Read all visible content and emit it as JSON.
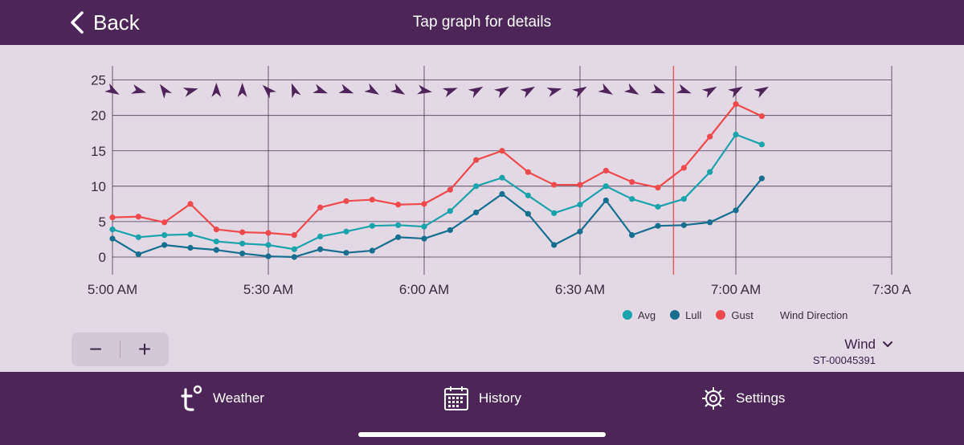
{
  "header": {
    "back_label": "Back",
    "title": "Tap graph for details"
  },
  "chart_data": {
    "type": "line",
    "x_tick_labels": [
      "5:00 AM",
      "5:30 AM",
      "6:00 AM",
      "6:30 AM",
      "7:00 AM",
      "7:30 A"
    ],
    "x_range_minutes": [
      0,
      150
    ],
    "y_ticks": [
      "25",
      "20",
      "15",
      "10",
      "5",
      "0"
    ],
    "ylim": [
      -2.5,
      27
    ],
    "current_time_marker_minute": 108,
    "x_minutes": [
      0,
      5,
      10,
      15,
      20,
      25,
      30,
      35,
      40,
      45,
      50,
      55,
      60,
      65,
      70,
      75,
      80,
      85,
      90,
      95,
      100,
      105,
      110,
      115,
      120,
      125
    ],
    "series": [
      {
        "name": "Avg",
        "color": "#1aa3aa",
        "values": [
          3.9,
          2.8,
          3.1,
          3.2,
          2.2,
          1.9,
          1.7,
          1.1,
          2.9,
          3.6,
          4.4,
          4.5,
          4.3,
          6.5,
          10.0,
          11.2,
          8.7,
          6.2,
          7.4,
          10.0,
          8.2,
          7.1,
          8.2,
          12.0,
          17.3,
          15.9
        ]
      },
      {
        "name": "Lull",
        "color": "#176e8f",
        "values": [
          2.6,
          0.4,
          1.7,
          1.3,
          1.0,
          0.5,
          0.1,
          0.0,
          1.1,
          0.6,
          0.9,
          2.8,
          2.6,
          3.8,
          6.3,
          8.9,
          6.1,
          1.7,
          3.6,
          8.0,
          3.1,
          4.4,
          4.5,
          4.9,
          6.6,
          11.1
        ]
      },
      {
        "name": "Gust",
        "color": "#ee4a4e",
        "values": [
          5.6,
          5.7,
          4.9,
          7.5,
          3.9,
          3.5,
          3.4,
          3.1,
          7.0,
          7.9,
          8.1,
          7.4,
          7.5,
          9.5,
          13.7,
          15.0,
          12.0,
          10.2,
          10.2,
          12.2,
          10.6,
          9.8,
          12.6,
          17.0,
          21.6,
          19.9
        ]
      }
    ],
    "wind_direction_label": "Wind Direction",
    "wind_direction_y_value": 23.5,
    "wind_direction_minutes": [
      0,
      5,
      10,
      15,
      20,
      25,
      30,
      35,
      40,
      45,
      50,
      55,
      60,
      65,
      70,
      75,
      80,
      85,
      90,
      95,
      100,
      105,
      110,
      115,
      120,
      125
    ],
    "wind_direction_degrees": [
      120,
      105,
      325,
      75,
      0,
      0,
      315,
      340,
      110,
      110,
      120,
      120,
      100,
      70,
      60,
      60,
      60,
      75,
      60,
      120,
      120,
      110,
      110,
      60,
      60,
      60
    ],
    "colors": {
      "background": "#e3d9e5",
      "grid": "#4a3454",
      "axis_text": "#3a2a40",
      "marker": "#e85a5a",
      "arrow": "#4e2559"
    }
  },
  "legend": {
    "items": [
      {
        "label": "Avg",
        "color": "#1aa3aa"
      },
      {
        "label": "Lull",
        "color": "#176e8f"
      },
      {
        "label": "Gust",
        "color": "#ee4a4e"
      }
    ],
    "wind_direction_label": "Wind Direction"
  },
  "zoom": {
    "minus": "−",
    "plus": "+"
  },
  "selector": {
    "title": "Wind",
    "device_id": "ST-00045391"
  },
  "tabs": [
    {
      "label": "Weather",
      "icon": "tempest-logo-icon"
    },
    {
      "label": "History",
      "icon": "calendar-icon"
    },
    {
      "label": "Settings",
      "icon": "gear-icon"
    }
  ],
  "theme": {
    "primary": "#4e2559"
  }
}
